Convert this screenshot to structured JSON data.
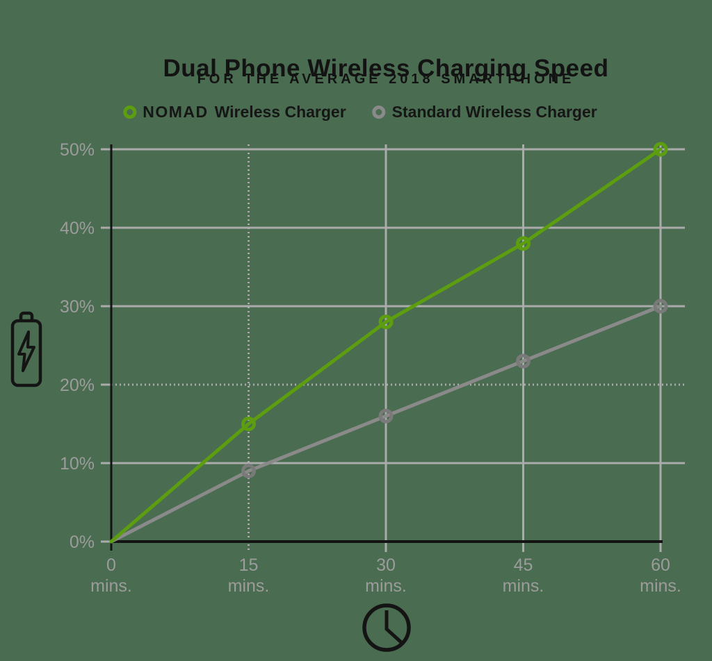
{
  "page": {
    "background_color": "#4A6C50"
  },
  "header": {
    "title": "Dual Phone Wireless Charging Speed",
    "subtitle": "FOR THE AVERAGE 2018 SMARTPHONE"
  },
  "legend": {
    "items": [
      {
        "brand": "NOMAD",
        "label": "Wireless Charger",
        "marker_color": "#5C9E10"
      },
      {
        "brand": "",
        "label": "Standard Wireless Charger",
        "marker_color": "#8A8A8A"
      }
    ]
  },
  "chart_data": {
    "type": "line",
    "title": "Dual Phone Wireless Charging Speed",
    "subtitle": "FOR THE AVERAGE 2018 SMARTPHONE",
    "x": [
      0,
      15,
      30,
      45,
      60
    ],
    "x_tick_labels": [
      [
        "0",
        "mins."
      ],
      [
        "15",
        "mins."
      ],
      [
        "30",
        "mins."
      ],
      [
        "45",
        "mins."
      ],
      [
        "60",
        "mins."
      ]
    ],
    "xlim": [
      0,
      60
    ],
    "y_ticks": [
      0,
      10,
      20,
      30,
      40,
      50
    ],
    "y_tick_labels": [
      "0%",
      "10%",
      "20%",
      "30%",
      "40%",
      "50%"
    ],
    "ylim": [
      0,
      50
    ],
    "grid": true,
    "legend_position": "top",
    "series": [
      {
        "name": "NOMAD Wireless Charger",
        "color": "#5C9E10",
        "marker": "ring",
        "marker_color": "#5C9E10",
        "values": [
          0,
          15,
          28,
          38,
          50
        ]
      },
      {
        "name": "Standard Wireless Charger",
        "color": "#8A8A8A",
        "marker": "ring",
        "marker_color": "#7A7A7A",
        "values": [
          0,
          9,
          16,
          23,
          30
        ]
      }
    ]
  },
  "colors": {
    "background": "#4A6C50",
    "title_text": "#131313",
    "axis": "#141414",
    "gridline": "#ABABAB",
    "tick_label": "#9C9C9C",
    "nomad_green": "#5C9E10",
    "standard_gray": "#8A8A8A",
    "icon_stroke": "#141414"
  },
  "icons": {
    "battery_charging": "battery-charging-icon",
    "clock": "clock-icon",
    "nomad_marker": "nomad-ring-marker-icon",
    "standard_marker": "standard-ring-marker-icon"
  }
}
